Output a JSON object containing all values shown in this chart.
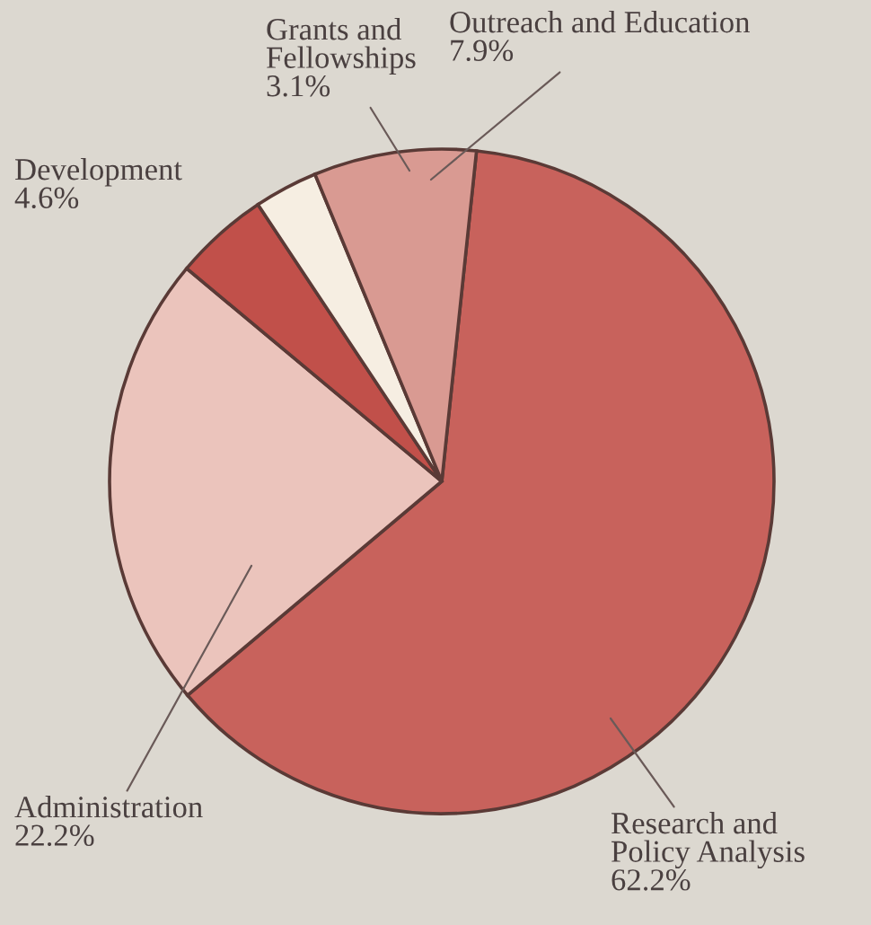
{
  "chart_data": {
    "type": "pie",
    "categories": [
      "Research and\nPolicy Analysis",
      "Administration",
      "Development",
      "Grants and\nFellowships",
      "Outreach and Education"
    ],
    "values": [
      62.2,
      22.2,
      4.6,
      3.1,
      7.9
    ],
    "value_labels": [
      "62.2%",
      "22.2%",
      "4.6%",
      "3.1%",
      "7.9%"
    ],
    "colors": [
      "#c8625c",
      "#ebc4bc",
      "#c1504a",
      "#f6eee2",
      "#d99a92"
    ]
  }
}
